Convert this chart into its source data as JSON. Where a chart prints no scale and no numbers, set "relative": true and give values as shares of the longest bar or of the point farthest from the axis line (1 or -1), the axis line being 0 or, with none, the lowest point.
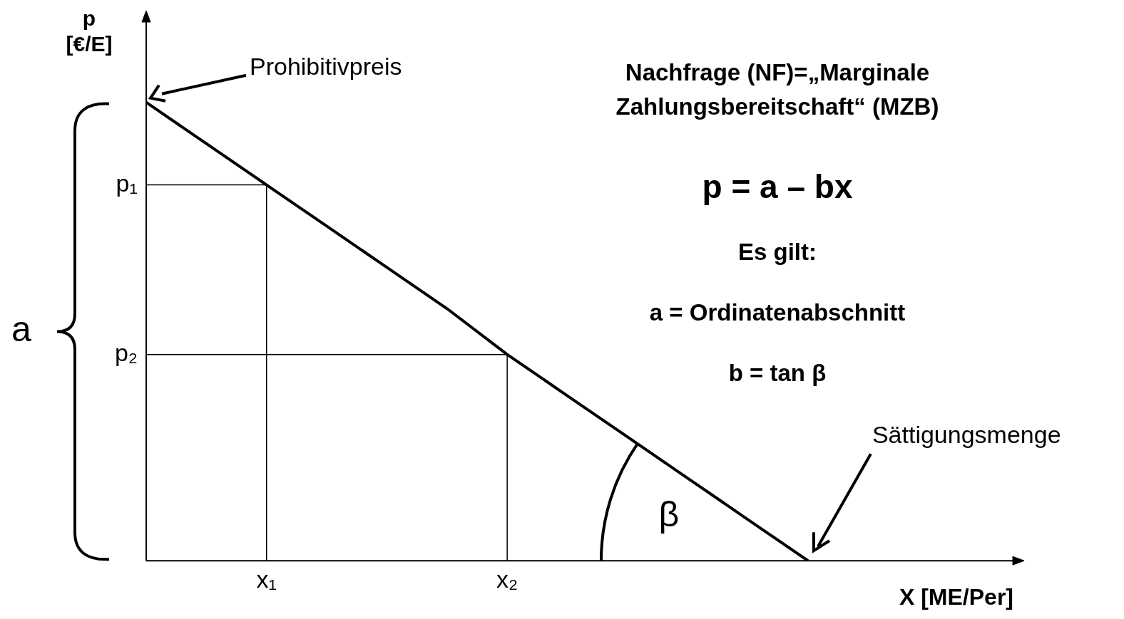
{
  "chart_data": {
    "type": "line",
    "relative": true,
    "title": "Nachfrage (NF)=„Marginale Zahlungsbereitschaft“ (MZB)",
    "xlabel": "X [ME/Per]",
    "ylabel": "p [€/E]",
    "categories": [
      null,
      null,
      "x₁",
      null,
      null,
      null,
      "x₂",
      null,
      null,
      null,
      null,
      null,
      null,
      null,
      null
    ],
    "series": [
      {
        "color": "#000000",
        "values": [
          1,
          0.91,
          0.82,
          0.73,
          0.64,
          0.55,
          0.45,
          0.36,
          0.27,
          0.18,
          0.09,
          0,
          null,
          null,
          null
        ]
      }
    ],
    "ref_lines": [
      {
        "axis": "y",
        "value": 0.82,
        "label": "p₁"
      },
      {
        "axis": "y",
        "value": 0.45,
        "label": "p₂"
      },
      {
        "axis": "x",
        "value": "x₁",
        "label": null
      },
      {
        "axis": "x",
        "value": "x₂",
        "label": null
      }
    ],
    "annotations": [
      "Prohibitivpreis",
      "Sättigungsmenge",
      "β",
      "a",
      "p = a – bx",
      "Es gilt:",
      "a = Ordinatenabschnitt",
      "b = tan β"
    ],
    "marker": "none",
    "line_style": "solid",
    "legend": false
  }
}
